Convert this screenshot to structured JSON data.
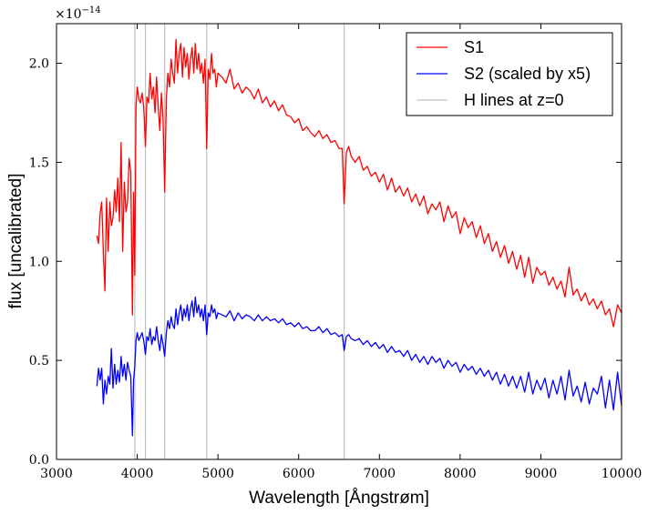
{
  "chart_data": {
    "type": "line",
    "xlabel": "Wavelength [Ångstrøm]",
    "ylabel": "flux [uncalibrated]",
    "y_scale_multiplier": "×10",
    "y_scale_exponent": "−14",
    "xlim": [
      3000,
      10000
    ],
    "ylim": [
      0.0,
      2.2
    ],
    "x_ticks": [
      3000,
      4000,
      5000,
      6000,
      7000,
      8000,
      9000,
      10000
    ],
    "x_tick_labels": [
      "3000",
      "4000",
      "5000",
      "6000",
      "7000",
      "8000",
      "9000",
      "10000"
    ],
    "y_ticks": [
      0.0,
      0.5,
      1.0,
      1.5,
      2.0
    ],
    "y_tick_labels": [
      "0.0",
      "0.5",
      "1.0",
      "1.5",
      "2.0"
    ],
    "grid": false,
    "legend_position": "top-right",
    "vlines": {
      "name": "H lines at z=0",
      "color": "#c0c0c0",
      "x": [
        3970,
        4102,
        4340,
        4861,
        6563
      ]
    },
    "series": [
      {
        "name": "S1",
        "color": "#ff0000",
        "x": [
          3500,
          3520,
          3540,
          3560,
          3580,
          3600,
          3620,
          3640,
          3660,
          3680,
          3700,
          3720,
          3740,
          3760,
          3780,
          3800,
          3820,
          3840,
          3860,
          3880,
          3900,
          3920,
          3940,
          3955,
          3970,
          3985,
          4000,
          4020,
          4040,
          4060,
          4080,
          4102,
          4120,
          4140,
          4160,
          4180,
          4200,
          4220,
          4240,
          4260,
          4280,
          4300,
          4320,
          4340,
          4360,
          4380,
          4400,
          4420,
          4440,
          4460,
          4480,
          4500,
          4520,
          4540,
          4560,
          4580,
          4600,
          4620,
          4640,
          4660,
          4680,
          4700,
          4720,
          4740,
          4760,
          4780,
          4800,
          4820,
          4840,
          4861,
          4880,
          4900,
          4920,
          4940,
          4960,
          4980,
          5000,
          5050,
          5100,
          5150,
          5200,
          5250,
          5300,
          5350,
          5400,
          5450,
          5500,
          5550,
          5600,
          5650,
          5700,
          5750,
          5800,
          5850,
          5900,
          5950,
          6000,
          6050,
          6100,
          6150,
          6200,
          6250,
          6300,
          6350,
          6400,
          6450,
          6500,
          6540,
          6563,
          6590,
          6620,
          6650,
          6700,
          6750,
          6800,
          6850,
          6900,
          6950,
          7000,
          7050,
          7100,
          7150,
          7200,
          7250,
          7300,
          7350,
          7400,
          7450,
          7500,
          7550,
          7600,
          7650,
          7700,
          7750,
          7800,
          7850,
          7900,
          7950,
          8000,
          8050,
          8100,
          8150,
          8200,
          8250,
          8300,
          8350,
          8400,
          8450,
          8500,
          8550,
          8600,
          8650,
          8700,
          8750,
          8800,
          8850,
          8900,
          8950,
          9000,
          9050,
          9100,
          9150,
          9200,
          9250,
          9300,
          9350,
          9400,
          9450,
          9500,
          9550,
          9600,
          9650,
          9700,
          9750,
          9800,
          9850,
          9900,
          9950,
          10000
        ],
        "y": [
          1.13,
          1.09,
          1.24,
          1.3,
          1.05,
          0.85,
          1.32,
          1.05,
          1.3,
          1.18,
          1.22,
          1.36,
          1.25,
          1.42,
          1.2,
          1.6,
          1.05,
          1.4,
          1.25,
          1.3,
          1.52,
          1.45,
          0.73,
          1.35,
          0.93,
          1.78,
          1.88,
          1.82,
          1.8,
          1.85,
          1.78,
          1.58,
          1.83,
          1.8,
          1.95,
          1.82,
          1.88,
          1.75,
          1.93,
          1.78,
          1.66,
          1.85,
          1.72,
          1.35,
          1.82,
          1.95,
          1.88,
          2.02,
          1.95,
          1.9,
          2.12,
          1.95,
          2.05,
          2.1,
          1.93,
          2.08,
          1.98,
          2.05,
          1.92,
          2.02,
          2.08,
          1.95,
          2.1,
          1.97,
          2.05,
          1.95,
          2.0,
          1.9,
          2.02,
          1.57,
          1.97,
          1.92,
          2.05,
          1.95,
          1.97,
          1.88,
          1.95,
          1.93,
          1.9,
          1.97,
          1.87,
          1.9,
          1.85,
          1.88,
          1.86,
          1.82,
          1.87,
          1.8,
          1.83,
          1.78,
          1.81,
          1.76,
          1.79,
          1.74,
          1.73,
          1.7,
          1.72,
          1.66,
          1.68,
          1.65,
          1.63,
          1.66,
          1.62,
          1.64,
          1.6,
          1.61,
          1.57,
          1.57,
          1.29,
          1.55,
          1.58,
          1.53,
          1.5,
          1.53,
          1.46,
          1.48,
          1.43,
          1.45,
          1.4,
          1.44,
          1.36,
          1.42,
          1.35,
          1.38,
          1.33,
          1.37,
          1.3,
          1.34,
          1.28,
          1.33,
          1.24,
          1.29,
          1.26,
          1.3,
          1.2,
          1.28,
          1.22,
          1.25,
          1.14,
          1.22,
          1.17,
          1.2,
          1.12,
          1.18,
          1.09,
          1.14,
          1.05,
          1.1,
          1.02,
          1.08,
          0.99,
          1.05,
          0.96,
          1.03,
          0.92,
          1.02,
          0.89,
          0.97,
          0.93,
          0.95,
          0.88,
          0.92,
          0.86,
          0.9,
          0.82,
          0.97,
          0.83,
          0.86,
          0.8,
          0.84,
          0.78,
          0.81,
          0.76,
          0.8,
          0.73,
          0.76,
          0.67,
          0.78,
          0.74
        ],
        "line_style": "solid"
      },
      {
        "name": "S2 (scaled by x5)",
        "color": "#0000ff",
        "x": [
          3500,
          3520,
          3540,
          3560,
          3580,
          3600,
          3620,
          3640,
          3660,
          3680,
          3700,
          3720,
          3740,
          3760,
          3780,
          3800,
          3820,
          3840,
          3860,
          3880,
          3900,
          3920,
          3940,
          3955,
          3970,
          3985,
          4000,
          4020,
          4040,
          4060,
          4080,
          4102,
          4120,
          4140,
          4160,
          4180,
          4200,
          4220,
          4240,
          4260,
          4280,
          4300,
          4320,
          4340,
          4360,
          4380,
          4400,
          4420,
          4440,
          4460,
          4480,
          4500,
          4520,
          4540,
          4560,
          4580,
          4600,
          4620,
          4640,
          4660,
          4680,
          4700,
          4720,
          4740,
          4760,
          4780,
          4800,
          4820,
          4840,
          4861,
          4880,
          4900,
          4920,
          4940,
          4960,
          4980,
          5000,
          5050,
          5100,
          5150,
          5200,
          5250,
          5300,
          5350,
          5400,
          5450,
          5500,
          5550,
          5600,
          5650,
          5700,
          5750,
          5800,
          5850,
          5900,
          5950,
          6000,
          6050,
          6100,
          6150,
          6200,
          6250,
          6300,
          6350,
          6400,
          6450,
          6500,
          6540,
          6563,
          6590,
          6620,
          6650,
          6700,
          6750,
          6800,
          6850,
          6900,
          6950,
          7000,
          7050,
          7100,
          7150,
          7200,
          7250,
          7300,
          7350,
          7400,
          7450,
          7500,
          7550,
          7600,
          7650,
          7700,
          7750,
          7800,
          7850,
          7900,
          7950,
          8000,
          8050,
          8100,
          8150,
          8200,
          8250,
          8300,
          8350,
          8400,
          8450,
          8500,
          8550,
          8600,
          8650,
          8700,
          8750,
          8800,
          8850,
          8900,
          8950,
          9000,
          9050,
          9100,
          9150,
          9200,
          9250,
          9300,
          9350,
          9400,
          9450,
          9500,
          9550,
          9600,
          9650,
          9700,
          9750,
          9800,
          9850,
          9900,
          9950,
          10000
        ],
        "y": [
          0.37,
          0.46,
          0.4,
          0.46,
          0.28,
          0.4,
          0.33,
          0.42,
          0.38,
          0.56,
          0.36,
          0.48,
          0.38,
          0.45,
          0.39,
          0.52,
          0.42,
          0.48,
          0.4,
          0.49,
          0.45,
          0.42,
          0.12,
          0.4,
          0.47,
          0.6,
          0.64,
          0.6,
          0.62,
          0.64,
          0.6,
          0.53,
          0.62,
          0.6,
          0.66,
          0.58,
          0.62,
          0.6,
          0.67,
          0.6,
          0.55,
          0.63,
          0.58,
          0.52,
          0.64,
          0.7,
          0.66,
          0.72,
          0.68,
          0.66,
          0.76,
          0.68,
          0.74,
          0.78,
          0.7,
          0.76,
          0.72,
          0.78,
          0.7,
          0.76,
          0.8,
          0.72,
          0.82,
          0.74,
          0.78,
          0.72,
          0.76,
          0.7,
          0.78,
          0.63,
          0.74,
          0.72,
          0.78,
          0.74,
          0.76,
          0.71,
          0.74,
          0.73,
          0.72,
          0.75,
          0.7,
          0.74,
          0.71,
          0.73,
          0.72,
          0.7,
          0.73,
          0.7,
          0.72,
          0.7,
          0.71,
          0.69,
          0.71,
          0.68,
          0.69,
          0.67,
          0.69,
          0.66,
          0.67,
          0.65,
          0.65,
          0.67,
          0.64,
          0.66,
          0.63,
          0.64,
          0.62,
          0.63,
          0.55,
          0.62,
          0.63,
          0.61,
          0.6,
          0.61,
          0.58,
          0.6,
          0.57,
          0.59,
          0.56,
          0.58,
          0.54,
          0.57,
          0.54,
          0.55,
          0.52,
          0.55,
          0.5,
          0.53,
          0.49,
          0.52,
          0.48,
          0.52,
          0.49,
          0.51,
          0.46,
          0.5,
          0.47,
          0.49,
          0.44,
          0.48,
          0.45,
          0.47,
          0.43,
          0.46,
          0.42,
          0.45,
          0.4,
          0.44,
          0.38,
          0.43,
          0.37,
          0.42,
          0.36,
          0.42,
          0.34,
          0.44,
          0.33,
          0.4,
          0.35,
          0.41,
          0.31,
          0.4,
          0.33,
          0.42,
          0.3,
          0.45,
          0.32,
          0.37,
          0.29,
          0.39,
          0.28,
          0.36,
          0.33,
          0.42,
          0.26,
          0.4,
          0.25,
          0.44,
          0.27
        ]
      }
    ]
  }
}
